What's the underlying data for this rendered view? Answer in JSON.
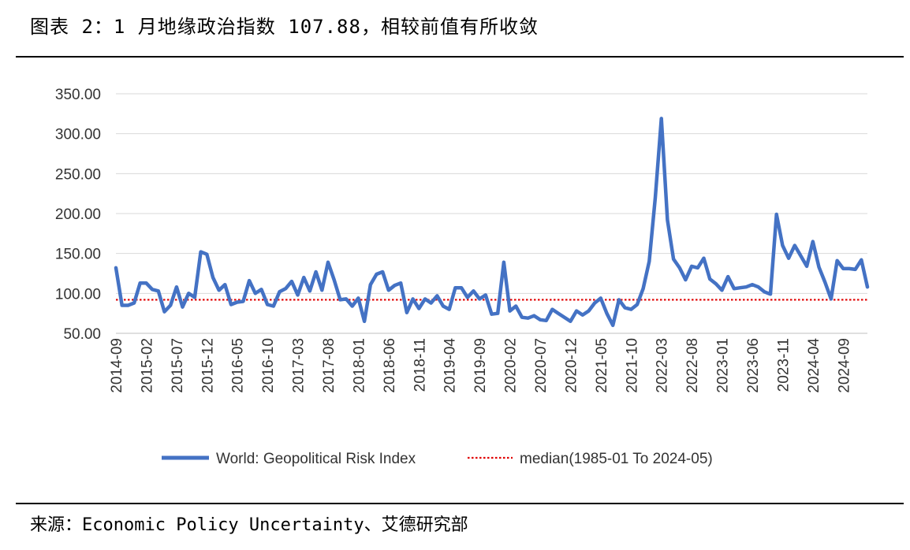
{
  "header": {
    "title": "图表 2：1 月地缘政治指数 107.88，相较前值有所收敛"
  },
  "footer": {
    "source": "来源：Economic Policy Uncertainty、艾德研究部"
  },
  "colors": {
    "series": "#4472C4",
    "median": "#E00000",
    "grid": "#D9D9D9"
  },
  "chart_data": {
    "type": "line",
    "title": "",
    "xlabel": "",
    "ylabel": "",
    "ylim": [
      50,
      350
    ],
    "yticks": [
      "50.00",
      "100.00",
      "150.00",
      "200.00",
      "250.00",
      "300.00",
      "350.00"
    ],
    "x_tick_labels": [
      "2014-09",
      "2015-02",
      "2015-07",
      "2015-12",
      "2016-05",
      "2016-10",
      "2017-03",
      "2017-08",
      "2018-01",
      "2018-06",
      "2018-11",
      "2019-04",
      "2019-09",
      "2020-02",
      "2020-07",
      "2020-12",
      "2021-05",
      "2021-10",
      "2022-03",
      "2022-08",
      "2023-01",
      "2023-06",
      "2023-11",
      "2024-04",
      "2024-09"
    ],
    "x_start": "2014-09",
    "x_end": "2025-01",
    "grid": true,
    "legend_position": "bottom",
    "series": [
      {
        "name": "World: Geopolitical Risk Index",
        "values": [
          132,
          85,
          85,
          88,
          113,
          113,
          105,
          103,
          77,
          85,
          108,
          83,
          100,
          95,
          152,
          149,
          120,
          104,
          111,
          86,
          89,
          90,
          116,
          100,
          105,
          86,
          84,
          102,
          106,
          115,
          98,
          120,
          103,
          127,
          104,
          139,
          117,
          92,
          93,
          84,
          94,
          65,
          111,
          124,
          127,
          104,
          110,
          113,
          76,
          93,
          81,
          93,
          88,
          97,
          84,
          80,
          107,
          107,
          95,
          103,
          93,
          98,
          74,
          75,
          139,
          78,
          84,
          70,
          69,
          72,
          67,
          66,
          80,
          75,
          70,
          65,
          78,
          73,
          78,
          88,
          94,
          75,
          60,
          92,
          82,
          80,
          86,
          106,
          140,
          220,
          319,
          192,
          143,
          132,
          117,
          134,
          132,
          144,
          118,
          112,
          104,
          121,
          106,
          107,
          108,
          111,
          108,
          102,
          99,
          199,
          160,
          144,
          160,
          147,
          134,
          165,
          133,
          114,
          93,
          141,
          131,
          131,
          130,
          142,
          108
        ]
      },
      {
        "name": "median(1985-01 To 2024-05)",
        "constant": 92
      }
    ]
  }
}
